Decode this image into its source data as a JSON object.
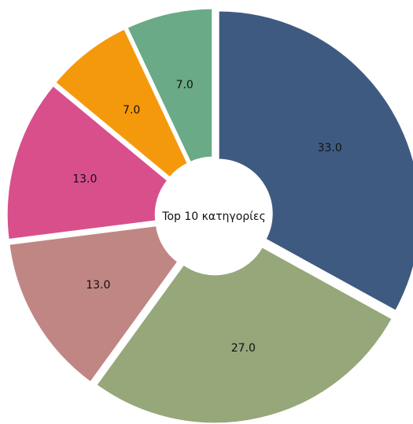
{
  "chart_data": {
    "type": "pie",
    "title": "Top 10 κατηγορίες",
    "categories": [
      "",
      "",
      "",
      "",
      "",
      ""
    ],
    "values": [
      33.0,
      27.0,
      13.0,
      13.0,
      7.0,
      7.0
    ],
    "data_labels": [
      "33.0",
      "27.0",
      "13.0",
      "13.0",
      "7.0",
      "7.0"
    ],
    "colors": [
      "#3f5a80",
      "#96a77a",
      "#c08684",
      "#d84f8c",
      "#f5990c",
      "#6aaa86"
    ],
    "donut": true,
    "exploded": true,
    "start_angle_deg": 0,
    "direction": "clockwise",
    "legend": "none"
  }
}
